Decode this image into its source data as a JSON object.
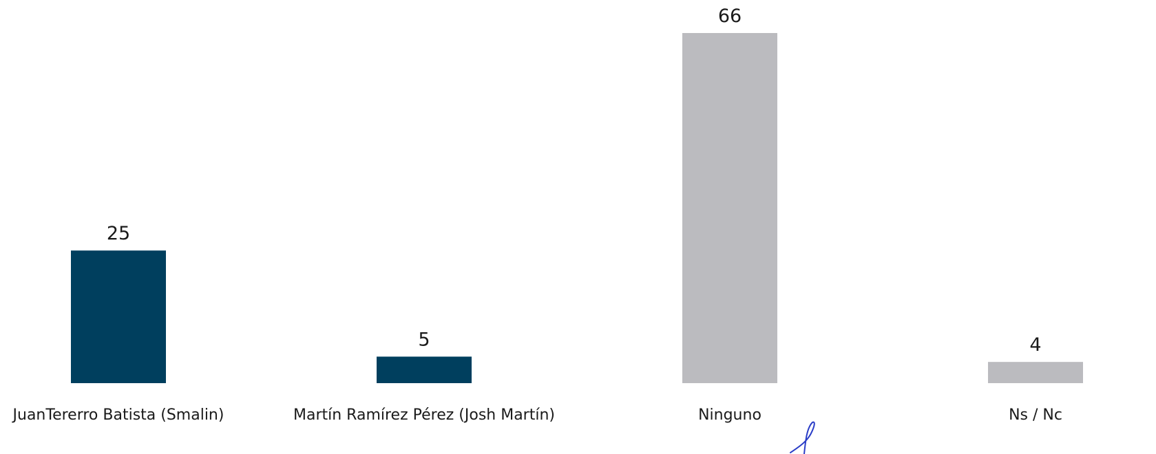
{
  "chart_data": {
    "type": "bar",
    "categories": [
      "JuanTererro Batista (Smalin)",
      "Martín Ramírez Pérez (Josh Martín)",
      "Ninguno",
      "Ns / Nc"
    ],
    "values": [
      25,
      5,
      66,
      4
    ],
    "bar_colors": [
      "#003f5e",
      "#003f5e",
      "#bbbbbf",
      "#bbbbbf"
    ],
    "data_labels": [
      "25",
      "5",
      "66",
      "4"
    ],
    "title": "",
    "xlabel": "",
    "ylabel": "",
    "ylim": [
      0,
      66
    ],
    "grid": false,
    "legend": "none"
  }
}
